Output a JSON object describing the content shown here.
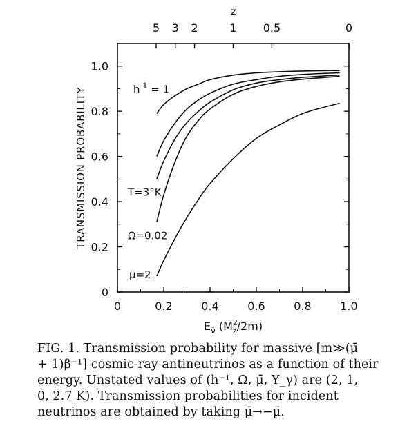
{
  "chart_data": {
    "type": "line",
    "xlabel": "E_ν̄  (M_z²/2m)",
    "xlabel_main": "E",
    "xlabel_sub": "ν̄",
    "xlabel_unit": "(M",
    "xlabel_unit_sub": "z",
    "xlabel_unit_sup": "2",
    "xlabel_unit_tail": "/2m)",
    "ylabel": "TRANSMISSION PROBABILITY",
    "top_axis_label": "z",
    "xlim": [
      0,
      1.0
    ],
    "ylim": [
      0,
      1.1
    ],
    "x_ticks": [
      0,
      0.2,
      0.4,
      0.6,
      0.8,
      1.0
    ],
    "x_tick_labels": [
      "0",
      "0.2",
      "0.4",
      "0.6",
      "0.8",
      "1.0"
    ],
    "y_ticks": [
      0,
      0.2,
      0.4,
      0.6,
      0.8,
      1.0
    ],
    "y_tick_labels": [
      "0",
      "0.2",
      "0.4",
      "0.6",
      "0.8",
      "1.0"
    ],
    "top_ticks": [
      {
        "label": "5",
        "x": 0.167
      },
      {
        "label": "3",
        "x": 0.25
      },
      {
        "label": "2",
        "x": 0.333
      },
      {
        "label": "1",
        "x": 0.5
      },
      {
        "label": "0.5",
        "x": 0.667
      },
      {
        "label": "0",
        "x": 1.0
      }
    ],
    "series": [
      {
        "name": "h⁻¹ = 1",
        "x": [
          0.17,
          0.2,
          0.25,
          0.3,
          0.35,
          0.4,
          0.5,
          0.6,
          0.7,
          0.8,
          0.9,
          0.96
        ],
        "y": [
          0.79,
          0.83,
          0.87,
          0.9,
          0.92,
          0.94,
          0.96,
          0.97,
          0.975,
          0.978,
          0.98,
          0.98
        ]
      },
      {
        "name": "",
        "x": [
          0.17,
          0.2,
          0.25,
          0.3,
          0.35,
          0.4,
          0.5,
          0.6,
          0.7,
          0.8,
          0.9,
          0.96
        ],
        "y": [
          0.6,
          0.67,
          0.75,
          0.81,
          0.85,
          0.88,
          0.92,
          0.94,
          0.955,
          0.963,
          0.968,
          0.97
        ]
      },
      {
        "name": "T=3°K",
        "x": [
          0.17,
          0.2,
          0.25,
          0.3,
          0.35,
          0.4,
          0.5,
          0.6,
          0.7,
          0.8,
          0.9,
          0.96
        ],
        "y": [
          0.5,
          0.58,
          0.68,
          0.75,
          0.8,
          0.84,
          0.895,
          0.925,
          0.94,
          0.95,
          0.957,
          0.96
        ]
      },
      {
        "name": "Ω=0.02",
        "x": [
          0.17,
          0.2,
          0.25,
          0.3,
          0.35,
          0.4,
          0.5,
          0.6,
          0.7,
          0.8,
          0.9,
          0.96
        ],
        "y": [
          0.31,
          0.43,
          0.58,
          0.69,
          0.76,
          0.81,
          0.875,
          0.91,
          0.93,
          0.942,
          0.95,
          0.955
        ]
      },
      {
        "name": "μ̄=2",
        "x": [
          0.17,
          0.2,
          0.25,
          0.3,
          0.35,
          0.4,
          0.5,
          0.6,
          0.7,
          0.8,
          0.9,
          0.96
        ],
        "y": [
          0.07,
          0.14,
          0.24,
          0.33,
          0.41,
          0.48,
          0.59,
          0.68,
          0.74,
          0.79,
          0.82,
          0.835
        ]
      }
    ],
    "annotations": [
      {
        "text": "h",
        "sup": "-1",
        "tail": " = 1",
        "series": 0
      },
      {
        "text": "T=3°K",
        "series": 2
      },
      {
        "text": "Ω=0.02",
        "series": 3
      },
      {
        "text": "μ̄=2",
        "series": 4
      }
    ],
    "grid": false,
    "legend": "none"
  },
  "caption": "FIG. 1.  Transmission probability for massive [m≫(μ̄\n+ 1)β⁻¹] cosmic-ray antineutrinos as a function of their\nenergy.  Unstated values of (h⁻¹, Ω, μ̄, Υ_γ) are (2, 1,\n0, 2.7 K).  Transmission probabilities for incident\nneutrinos are obtained by taking μ̄→−μ̄."
}
